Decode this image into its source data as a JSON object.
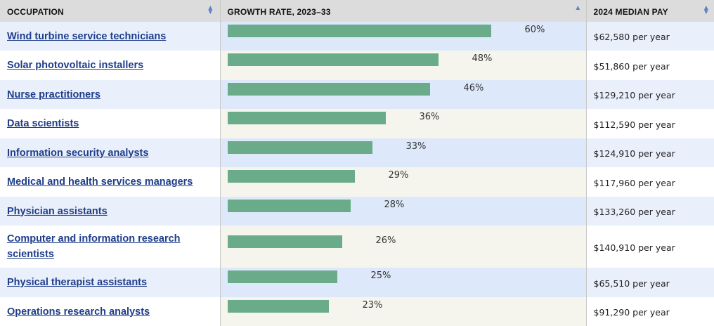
{
  "header": {
    "occupation": "OCCUPATION",
    "growth_rate": "GROWTH RATE, 2023–33",
    "median_pay": "2024 MEDIAN PAY",
    "sort_both_icon": "sort-both-icon",
    "sort_asc_icon": "sort-asc-icon"
  },
  "colors": {
    "bar": "#6aab8a",
    "link": "#1f3d8a",
    "header_bg": "#dcdcdc",
    "row_alt": "#eaf0fb"
  },
  "rows": [
    {
      "occupation": "Wind turbine service technicians",
      "growth_label": "60%",
      "median_pay": "$62,580 per year"
    },
    {
      "occupation": "Solar photovoltaic installers",
      "growth_label": "48%",
      "median_pay": "$51,860 per year"
    },
    {
      "occupation": "Nurse practitioners",
      "growth_label": "46%",
      "median_pay": "$129,210 per year"
    },
    {
      "occupation": "Data scientists",
      "growth_label": "36%",
      "median_pay": "$112,590 per year"
    },
    {
      "occupation": "Information security analysts",
      "growth_label": "33%",
      "median_pay": "$124,910 per year"
    },
    {
      "occupation": "Medical and health services managers",
      "growth_label": "29%",
      "median_pay": "$117,960 per year"
    },
    {
      "occupation": "Physician assistants",
      "growth_label": "28%",
      "median_pay": "$133,260 per year"
    },
    {
      "occupation": "Computer and information research scientists",
      "growth_label": "26%",
      "median_pay": "$140,910 per year"
    },
    {
      "occupation": "Physical therapist assistants",
      "growth_label": "25%",
      "median_pay": "$65,510 per year"
    },
    {
      "occupation": "Operations research analysts",
      "growth_label": "23%",
      "median_pay": "$91,290 per year"
    }
  ],
  "chart_data": {
    "type": "bar",
    "orientation": "horizontal",
    "categories": [
      "Wind turbine service technicians",
      "Solar photovoltaic installers",
      "Nurse practitioners",
      "Data scientists",
      "Information security analysts",
      "Medical and health services managers",
      "Physician assistants",
      "Computer and information research scientists",
      "Physical therapist assistants",
      "Operations research analysts"
    ],
    "values": [
      60,
      48,
      46,
      36,
      33,
      29,
      28,
      26,
      25,
      23
    ],
    "title": "",
    "xlabel": "GROWTH RATE, 2023–33",
    "ylabel": "",
    "unit": "%",
    "xlim": [
      0,
      60
    ],
    "grid": false
  }
}
